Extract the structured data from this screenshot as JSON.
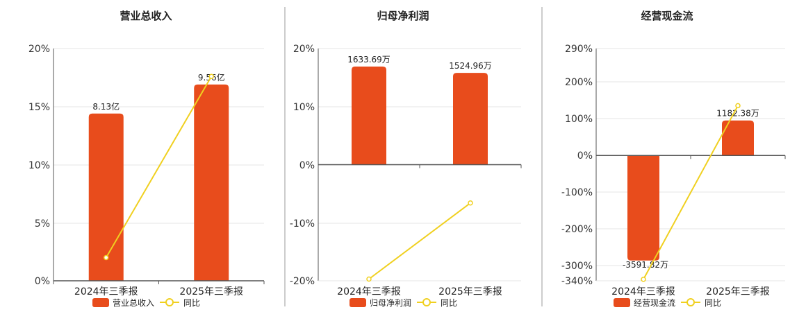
{
  "colors": {
    "bar": "#E84C1C",
    "line": "#F0D020",
    "grid": "#e6e6e6",
    "axis": "#555555",
    "divider": "#999999"
  },
  "chart_data": [
    {
      "type": "bar",
      "title": "营业总收入",
      "categories": [
        "2024年三季报",
        "2025年三季报"
      ],
      "yticks": [
        "20%",
        "15%",
        "10%",
        "5%",
        "0%"
      ],
      "ylim": [
        0,
        20
      ],
      "series": [
        {
          "name": "营业总收入",
          "type": "bar",
          "values": [
            14.4,
            16.9
          ],
          "labels": [
            "8.13亿",
            "9.56亿"
          ]
        },
        {
          "name": "同比",
          "type": "line",
          "values": [
            2.0,
            17.6
          ]
        }
      ],
      "legend": [
        "营业总收入",
        "同比"
      ]
    },
    {
      "type": "bar",
      "title": "归母净利润",
      "categories": [
        "2024年三季报",
        "2025年三季报"
      ],
      "yticks": [
        "20%",
        "10%",
        "0%",
        "-10%",
        "-20%"
      ],
      "ylim": [
        -20,
        20
      ],
      "series": [
        {
          "name": "归母净利润",
          "type": "bar",
          "values": [
            16.9,
            15.8
          ],
          "labels": [
            "1633.69万",
            "1524.96万"
          ]
        },
        {
          "name": "同比",
          "type": "line",
          "values": [
            -19.7,
            -6.6
          ]
        }
      ],
      "legend": [
        "归母净利润",
        "同比"
      ]
    },
    {
      "type": "bar",
      "title": "经营现金流",
      "categories": [
        "2024年三季报",
        "2025年三季报"
      ],
      "yticks": [
        "290%",
        "200%",
        "100%",
        "0%",
        "-100%",
        "-200%",
        "-300%",
        "-340%"
      ],
      "ylim": [
        -340,
        290
      ],
      "series": [
        {
          "name": "经营现金流",
          "type": "bar",
          "values": [
            -285,
            95
          ],
          "labels": [
            "-3591.82万",
            "1182.38万"
          ]
        },
        {
          "name": "同比",
          "type": "line",
          "values": [
            -336,
            135
          ]
        }
      ],
      "legend": [
        "经营现金流",
        "同比"
      ]
    }
  ]
}
